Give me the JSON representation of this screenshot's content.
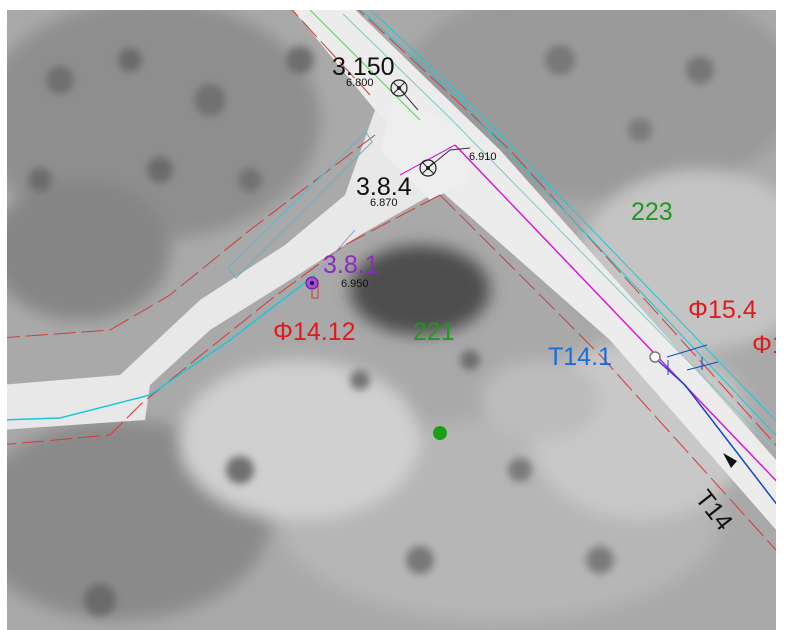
{
  "colors": {
    "black": "#111111",
    "purple": "#8a2bc0",
    "green": "#1e9a1e",
    "red": "#e01b1b",
    "blue": "#1a6ed6",
    "cyan": "#19c8d6",
    "magenta": "#d61ad6",
    "pipe": "#1448c8",
    "boundary": "#d23a3a"
  },
  "features": {
    "well_3_150": {
      "name": "3.150",
      "elevation": "6.800"
    },
    "well_3_8_4": {
      "name": "3.8.4",
      "elevation": "6.870"
    },
    "well_3_8_1": {
      "name": "3.8.1",
      "elevation": "6.950"
    },
    "point_6_910": {
      "elevation": "6.910"
    },
    "well_T14_1": {
      "name": "T14.1"
    },
    "pipe_T14": {
      "name": "T14"
    }
  },
  "parcels": {
    "p221": "221",
    "p223": "223"
  },
  "lots": {
    "f14_12": "Φ14.12",
    "f15_4": "Φ15.4",
    "f1_partial": "Φ1"
  },
  "icons": {
    "manhole": "circle-cross-icon",
    "purple_well": "purple-dot-icon",
    "green_point": "green-dot-icon",
    "flow": "arrow-icon"
  }
}
